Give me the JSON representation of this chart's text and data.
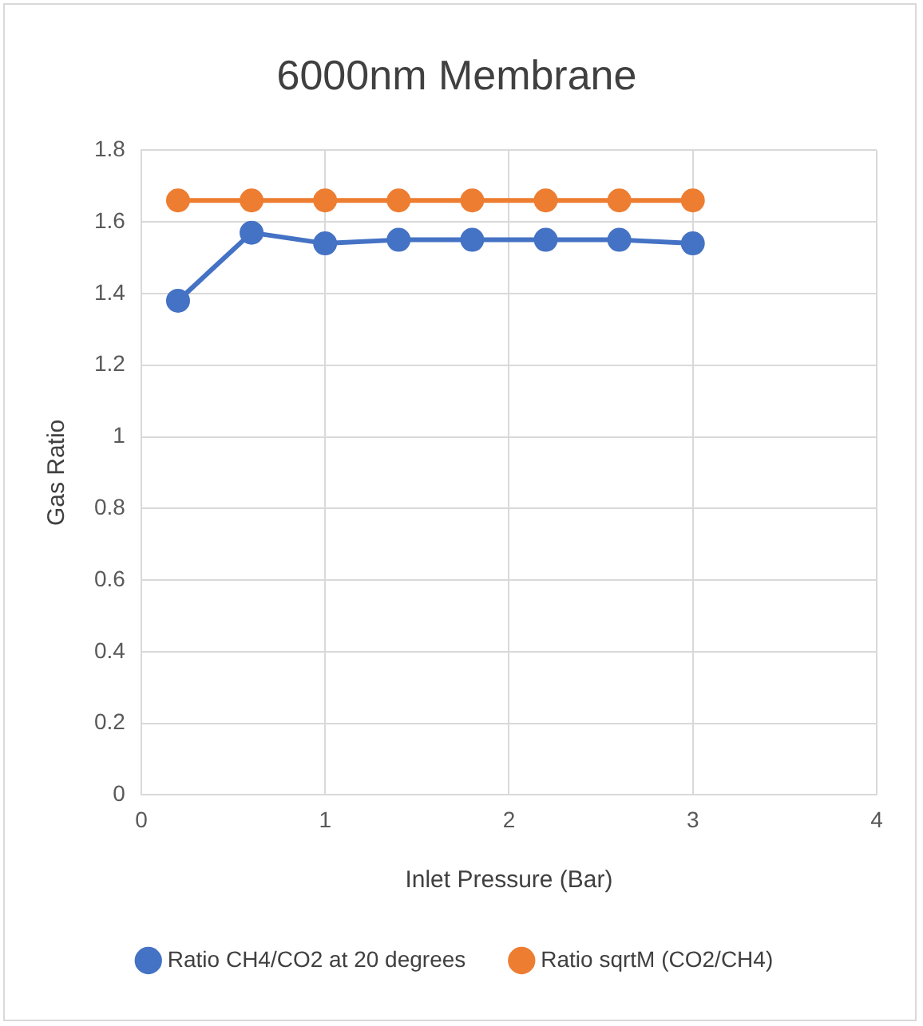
{
  "chart_data": {
    "type": "line",
    "title": "6000nm Membrane",
    "xlabel": "Inlet Pressure (Bar)",
    "ylabel": "Gas Ratio",
    "x": [
      0.2,
      0.6,
      1.0,
      1.4,
      1.8,
      2.2,
      2.6,
      3.0
    ],
    "series": [
      {
        "name": "Ratio CH4/CO2 at 20 degrees",
        "color": "#4472c4",
        "values": [
          1.38,
          1.57,
          1.54,
          1.55,
          1.55,
          1.55,
          1.55,
          1.54
        ]
      },
      {
        "name": "Ratio sqrtM (CO2/CH4)",
        "color": "#ed7d31",
        "values": [
          1.66,
          1.66,
          1.66,
          1.66,
          1.66,
          1.66,
          1.66,
          1.66
        ]
      }
    ],
    "xlim": [
      0,
      4
    ],
    "xticks": [
      0,
      1,
      2,
      3,
      4
    ],
    "ylim": [
      0,
      1.8
    ],
    "yticks": [
      0,
      0.2,
      0.4,
      0.6,
      0.8,
      1,
      1.2,
      1.4,
      1.6,
      1.8
    ],
    "grid": true,
    "legend": "bottom",
    "marker": "circle",
    "line_style": "solid"
  }
}
